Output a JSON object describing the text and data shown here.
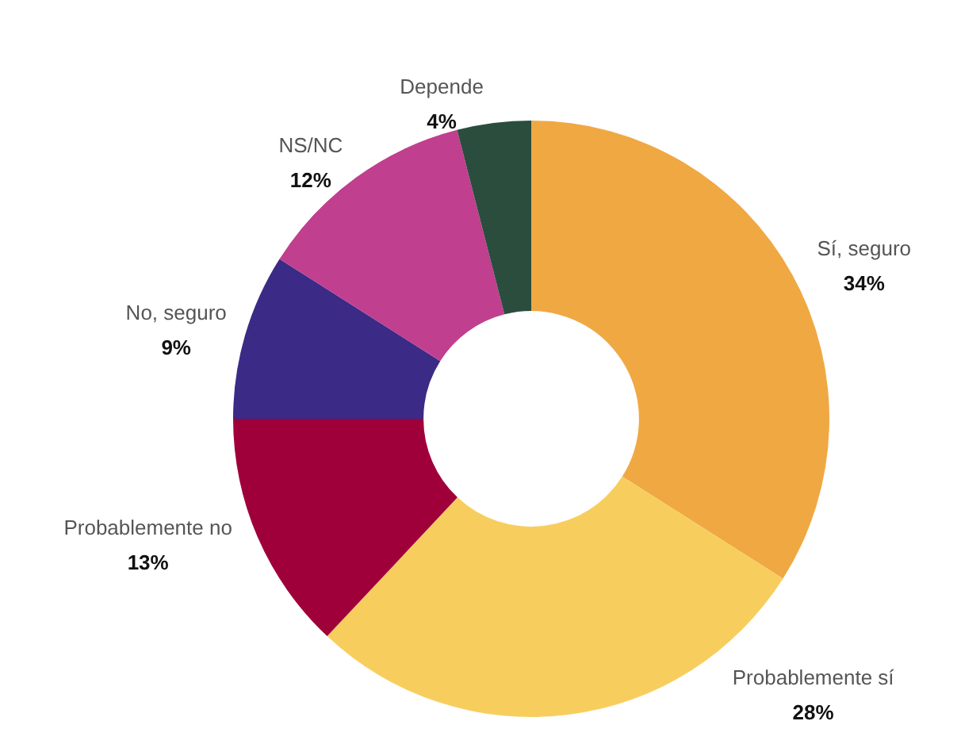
{
  "chart_data": {
    "type": "donut",
    "categories": [
      "Sí, seguro",
      "Probablemente sí",
      "Probablemente no",
      "No, seguro",
      "NS/NC",
      "Depende"
    ],
    "values": [
      34,
      28,
      13,
      9,
      12,
      4
    ],
    "colors": [
      "#f0a843",
      "#f7ce5e",
      "#a0003a",
      "#3b2a86",
      "#c03f8e",
      "#2a4d3e"
    ],
    "value_labels": [
      "34%",
      "28%",
      "13%",
      "9%",
      "12%",
      "4%"
    ]
  }
}
